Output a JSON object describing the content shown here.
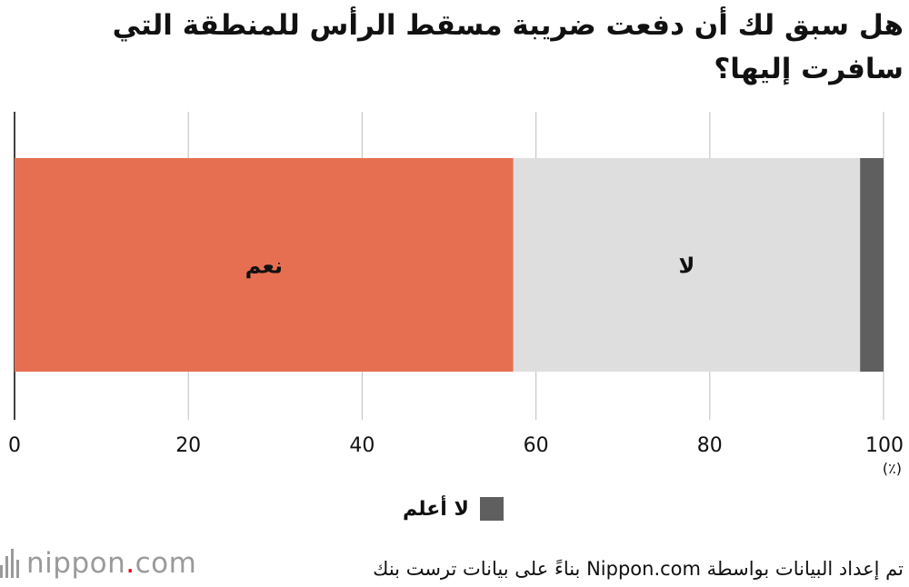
{
  "chart_data": {
    "type": "bar",
    "orientation": "horizontal-stacked",
    "title": "هل سبق لك أن دفعت ضريبة مسقط الرأس للمنطقة التي سافرت إليها؟",
    "unit": "(٪)",
    "xlim": [
      0,
      100
    ],
    "ticks": [
      0,
      20,
      40,
      60,
      80,
      100
    ],
    "grid": true,
    "segments": [
      {
        "name": "نعم",
        "value": 57.4,
        "color": "#e66f52",
        "label_inside": true
      },
      {
        "name": "لا",
        "value": 39.9,
        "color": "#dedede",
        "label_inside": true
      },
      {
        "name": "لا أعلم",
        "value": 2.7,
        "color": "#5f5f5f",
        "label_inside": false
      }
    ],
    "legend": {
      "placement": "bottom-center",
      "label": "لا أعلم",
      "color": "#5f5f5f"
    }
  },
  "footer": {
    "logo_name": "nippon",
    "logo_dot": ".",
    "logo_suffix": "com",
    "source": "تم إعداد البيانات بواسطة Nippon.com بناءً على بيانات ترست بنك"
  },
  "colors": {
    "grid": "#c8c8c8",
    "axis": "#111111"
  }
}
